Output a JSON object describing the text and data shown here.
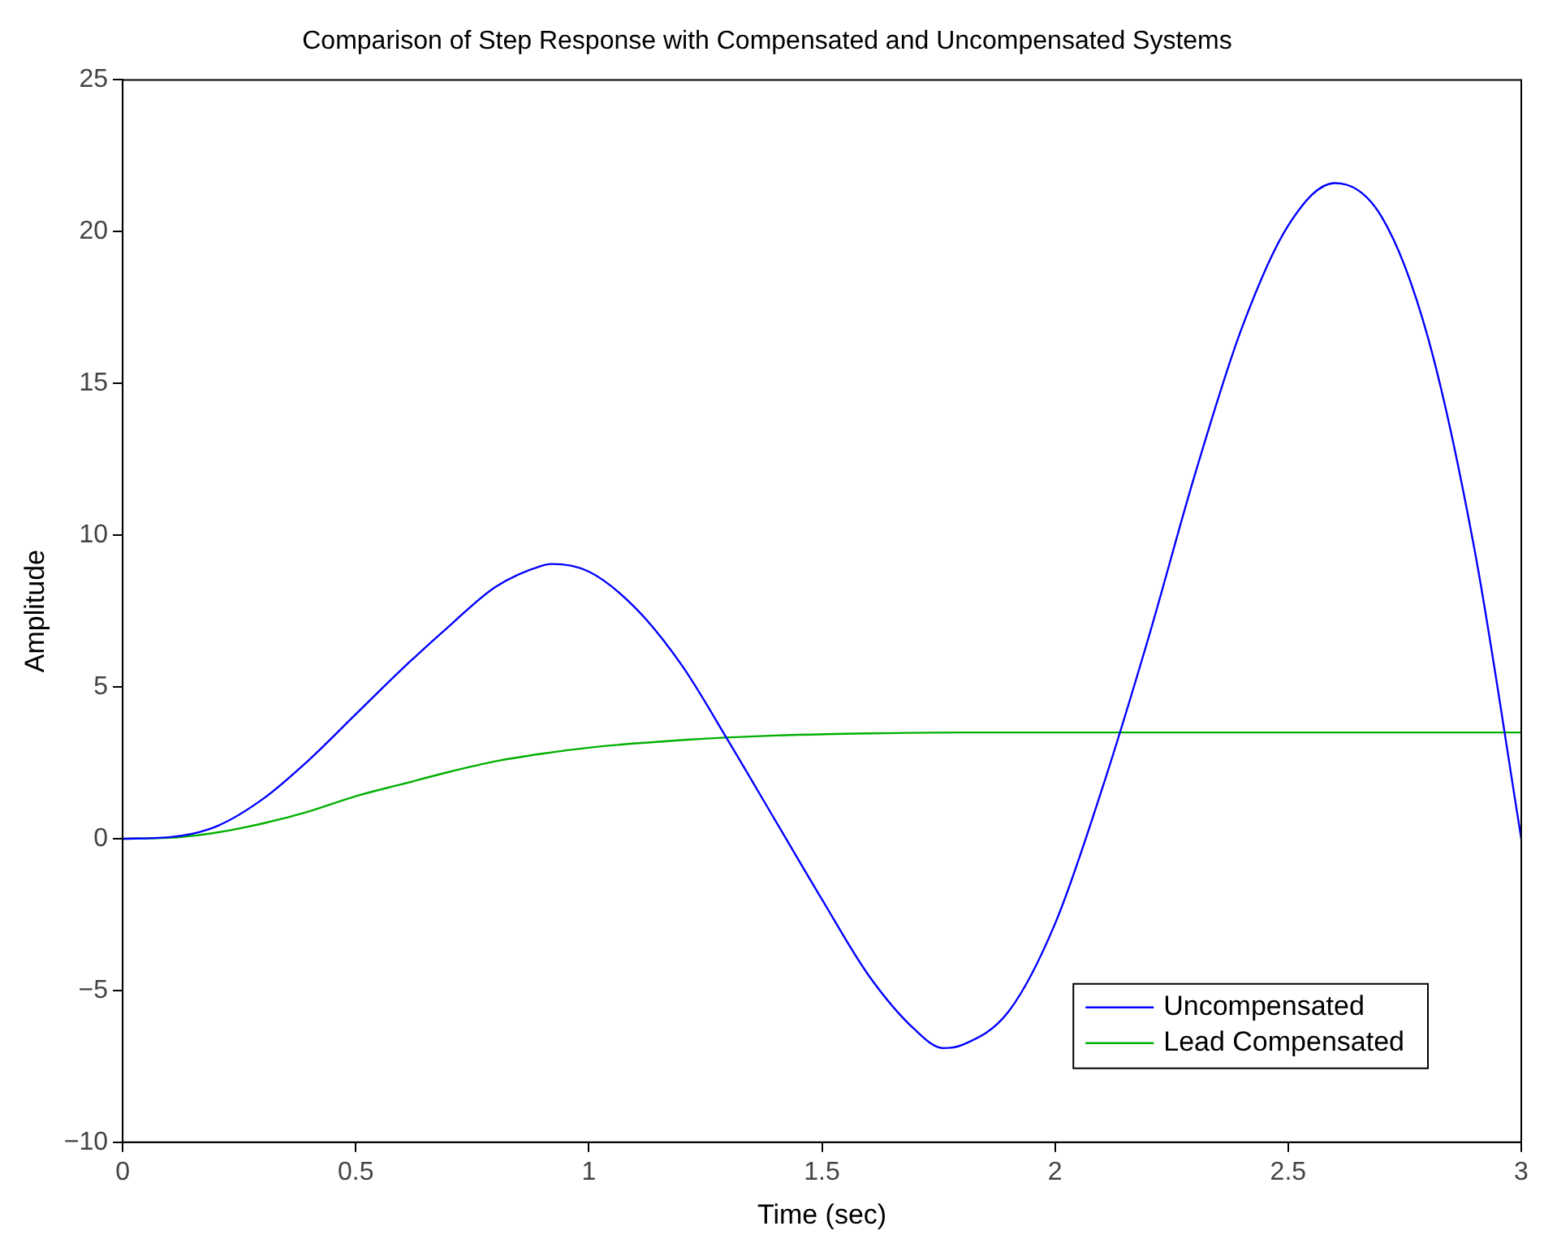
{
  "chart_data": {
    "type": "line",
    "title": "Comparison of Step Response with Compensated and Uncompensated Systems",
    "xlabel": "Time (sec)",
    "ylabel": "Amplitude",
    "xlim": [
      0,
      3
    ],
    "xticks": [
      0,
      0.5,
      1,
      1.5,
      2,
      2.5,
      3
    ],
    "ylim": [
      -10,
      25
    ],
    "yticks": [
      -10,
      -5,
      0,
      5,
      10,
      15,
      20,
      25
    ],
    "grid": false,
    "legend": "bottom right",
    "marker": "none",
    "line_style": "solid",
    "series": [
      {
        "name": "Uncompensated",
        "color": "#0000ff",
        "x": [
          0,
          0.1,
          0.2,
          0.3,
          0.4,
          0.5,
          0.6,
          0.7,
          0.8,
          0.9,
          0.92,
          1.0,
          1.1,
          1.2,
          1.3,
          1.4,
          1.5,
          1.6,
          1.7,
          1.76,
          1.8,
          1.9,
          2.0,
          2.1,
          2.2,
          2.3,
          2.4,
          2.5,
          2.6,
          2.7,
          2.8,
          2.9,
          3.0
        ],
        "values": [
          0,
          0.05,
          0.4,
          1.3,
          2.6,
          4.1,
          5.6,
          7.0,
          8.3,
          9.0,
          9.05,
          8.8,
          7.6,
          5.7,
          3.2,
          0.6,
          -2.0,
          -4.5,
          -6.3,
          -6.9,
          -6.8,
          -5.7,
          -2.8,
          1.6,
          6.6,
          12.0,
          16.8,
          20.2,
          21.6,
          20.5,
          16.5,
          9.5,
          0
        ]
      },
      {
        "name": "Lead Compensated",
        "color": "#00b000",
        "x": [
          0,
          0.1,
          0.2,
          0.3,
          0.4,
          0.5,
          0.6,
          0.7,
          0.8,
          0.9,
          1.0,
          1.2,
          1.4,
          1.6,
          1.8,
          2.0,
          2.5,
          3.0
        ],
        "values": [
          0,
          0.03,
          0.2,
          0.5,
          0.9,
          1.4,
          1.8,
          2.2,
          2.55,
          2.8,
          3.0,
          3.25,
          3.4,
          3.47,
          3.5,
          3.5,
          3.5,
          3.5
        ]
      }
    ]
  }
}
